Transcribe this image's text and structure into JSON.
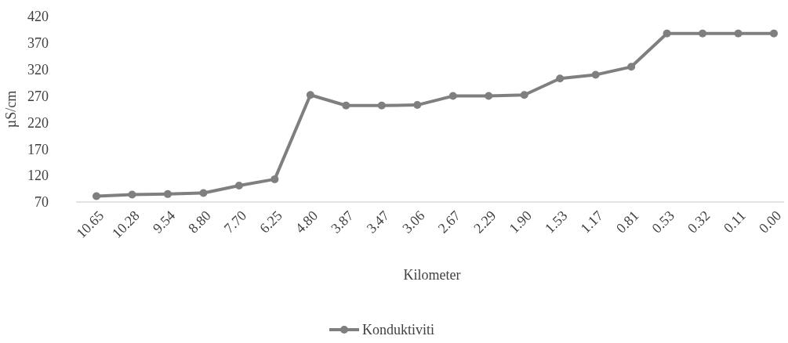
{
  "chart_data": {
    "type": "line",
    "xlabel": "Kilometer",
    "ylabel": "µS/cm",
    "categories": [
      "10.65",
      "10.28",
      "9.54",
      "8.80",
      "7.70",
      "6.25",
      "4.80",
      "3.87",
      "3.47",
      "3.06",
      "2.67",
      "2.29",
      "1.90",
      "1.53",
      "1.17",
      "0.81",
      "0.53",
      "0.32",
      "0.11",
      "0.00"
    ],
    "series": [
      {
        "name": "Konduktiviti",
        "color": "#7f7f7f",
        "values": [
          81,
          84,
          85,
          87,
          101,
          113,
          272,
          252,
          252,
          253,
          270,
          270,
          272,
          303,
          310,
          325,
          388,
          388,
          388,
          388
        ]
      }
    ],
    "ylim": [
      70,
      420
    ],
    "yticks": [
      70,
      120,
      170,
      220,
      270,
      320,
      370,
      420
    ],
    "grid": false,
    "legend": "bottom",
    "marker": "circle",
    "line_style": "solid"
  }
}
